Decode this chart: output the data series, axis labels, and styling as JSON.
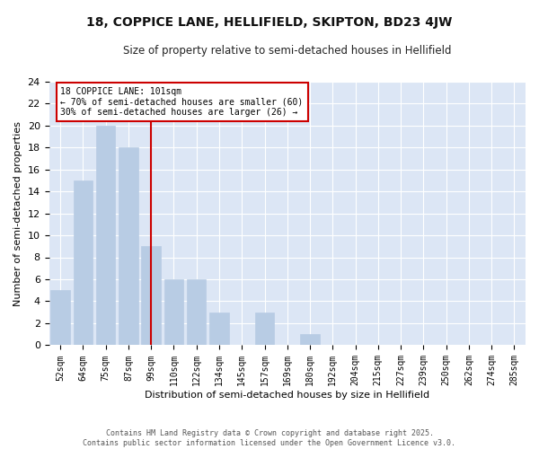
{
  "title_line1": "18, COPPICE LANE, HELLIFIELD, SKIPTON, BD23 4JW",
  "title_line2": "Size of property relative to semi-detached houses in Hellifield",
  "xlabel": "Distribution of semi-detached houses by size in Hellifield",
  "ylabel": "Number of semi-detached properties",
  "bar_labels": [
    "52sqm",
    "64sqm",
    "75sqm",
    "87sqm",
    "99sqm",
    "110sqm",
    "122sqm",
    "134sqm",
    "145sqm",
    "157sqm",
    "169sqm",
    "180sqm",
    "192sqm",
    "204sqm",
    "215sqm",
    "227sqm",
    "239sqm",
    "250sqm",
    "262sqm",
    "274sqm",
    "285sqm"
  ],
  "bar_values": [
    5,
    15,
    20,
    18,
    9,
    6,
    6,
    3,
    0,
    3,
    0,
    1,
    0,
    0,
    0,
    0,
    0,
    0,
    0,
    0,
    0
  ],
  "bar_color": "#b8cce4",
  "bar_edge_color": "#b8cce4",
  "fig_bg_color": "#ffffff",
  "ax_bg_color": "#dce6f5",
  "grid_color": "#ffffff",
  "vline_color": "#cc0000",
  "annotation_title": "18 COPPICE LANE: 101sqm",
  "annotation_line1": "← 70% of semi-detached houses are smaller (60)",
  "annotation_line2": "30% of semi-detached houses are larger (26) →",
  "ylim": [
    0,
    24
  ],
  "yticks": [
    0,
    2,
    4,
    6,
    8,
    10,
    12,
    14,
    16,
    18,
    20,
    22,
    24
  ],
  "footer_line1": "Contains HM Land Registry data © Crown copyright and database right 2025.",
  "footer_line2": "Contains public sector information licensed under the Open Government Licence v3.0."
}
